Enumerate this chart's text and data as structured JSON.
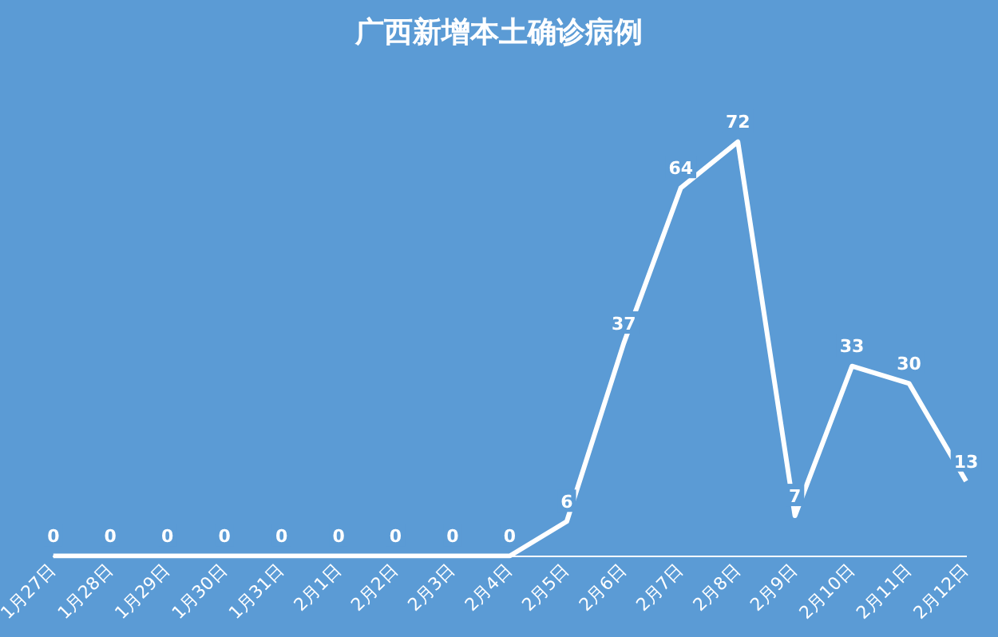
{
  "chart_data": {
    "type": "line",
    "title": "广西新增本土确诊病例",
    "categories": [
      "1月27日",
      "1月28日",
      "1月29日",
      "1月30日",
      "1月31日",
      "2月1日",
      "2月2日",
      "2月3日",
      "2月4日",
      "2月5日",
      "2月6日",
      "2月7日",
      "2月8日",
      "2月9日",
      "2月10日",
      "2月11日",
      "2月12日"
    ],
    "series": [
      {
        "color": "#ffffff",
        "values": [
          0,
          0,
          0,
          0,
          0,
          0,
          0,
          0,
          0,
          6,
          37,
          64,
          72,
          7,
          33,
          30,
          13
        ]
      }
    ],
    "data_labels": true,
    "grid": false,
    "legend": false,
    "marker": "none",
    "line_style": "solid",
    "tick_labels": "x"
  }
}
